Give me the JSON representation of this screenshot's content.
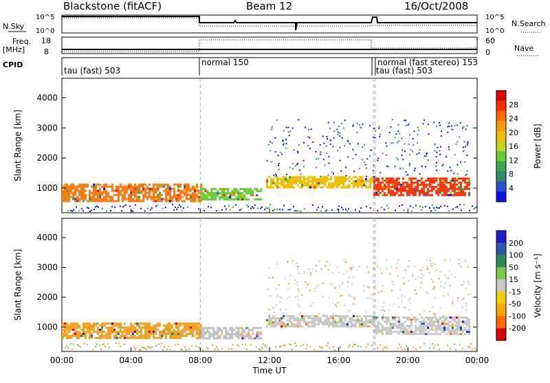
{
  "header": {
    "title": "Blackstone (fitACF)",
    "beam": "Beam 12",
    "date": "16/Oct/2008"
  },
  "strip_labels": {
    "nsky": "N.Sky",
    "nsearch": "N.Search",
    "freq_top": "Freq.",
    "freq_unit": "[MHz]",
    "nave": "Nave",
    "cpid": "CPID",
    "nsky_ticks": [
      "10^5",
      "10^0"
    ],
    "nsearch_ticks": [
      "10^5",
      "10^0"
    ],
    "freq_ticks": [
      "18",
      "8"
    ],
    "nave_ticks": [
      "60",
      "0"
    ]
  },
  "cpid_modes": [
    {
      "label": "tau (fast) 503",
      "start_hour": 0
    },
    {
      "label": "normal 150",
      "start_hour": 8
    },
    {
      "label": "tau (fast) 503",
      "start_hour": 18
    },
    {
      "label": "normal (fast stereo) 153",
      "start_hour": 18.1
    }
  ],
  "chart_data": [
    {
      "type": "heatmap",
      "ylabel": "Slant Range [km]",
      "xlabel": "Time UT",
      "xlim": [
        0,
        24
      ],
      "ylim": [
        180,
        4650
      ],
      "x_ticks": [
        "00:00",
        "04:00",
        "08:00",
        "12:00",
        "16:00",
        "20:00",
        "00:00"
      ],
      "y_ticks": [
        1000,
        2000,
        3000,
        4000
      ],
      "colorbar": {
        "label": "Power [dB]",
        "ticks": [
          "4",
          "8",
          "12",
          "16",
          "20",
          "24",
          "28"
        ],
        "colors": [
          "#1010e8",
          "#2a4fd0",
          "#2e8b6a",
          "#3aa84a",
          "#66cc33",
          "#bfd420",
          "#f0c000",
          "#ff9900",
          "#ff6600",
          "#ff2a00",
          "#e00000"
        ]
      },
      "segments": [
        {
          "t": [
            0,
            8
          ],
          "range": [
            600,
            1150
          ],
          "color": "#ff7a10"
        },
        {
          "t": [
            8,
            11.5
          ],
          "range": [
            600,
            1000
          ],
          "color": "#66cc33"
        },
        {
          "t": [
            11.8,
            18
          ],
          "range": [
            1050,
            1400
          ],
          "color": "#f0c000"
        },
        {
          "t": [
            18,
            23.5
          ],
          "range": [
            750,
            1350
          ],
          "color": "#ff3000"
        }
      ]
    },
    {
      "type": "heatmap",
      "ylabel": "Slant Range [km]",
      "xlabel": "Time UT",
      "xlim": [
        0,
        24
      ],
      "ylim": [
        180,
        4650
      ],
      "x_ticks": [
        "00:00",
        "04:00",
        "08:00",
        "12:00",
        "16:00",
        "20:00",
        "00:00"
      ],
      "y_ticks": [
        1000,
        2000,
        3000,
        4000
      ],
      "colorbar": {
        "label": "Velocity [m s⁻¹]",
        "ticks": [
          "200",
          "100",
          "50",
          "15",
          "-15",
          "-50",
          "-100",
          "-200"
        ],
        "colors": [
          "#1c1cc8",
          "#2e5aa8",
          "#2e8b57",
          "#7ac943",
          "#c8c8c8",
          "#f5d000",
          "#ffa500",
          "#ff6a00",
          "#e00000"
        ]
      },
      "segments": [
        {
          "t": [
            0,
            8
          ],
          "range": [
            600,
            1150
          ],
          "color": "#f5a020"
        },
        {
          "t": [
            8,
            11.5
          ],
          "range": [
            600,
            1000
          ],
          "color": "#c0c0c0"
        },
        {
          "t": [
            11.8,
            18
          ],
          "range": [
            1050,
            1400
          ],
          "color": "#c8c8c8"
        },
        {
          "t": [
            18,
            23.5
          ],
          "range": [
            750,
            1350
          ],
          "color": "#c8c8c8"
        }
      ]
    }
  ]
}
